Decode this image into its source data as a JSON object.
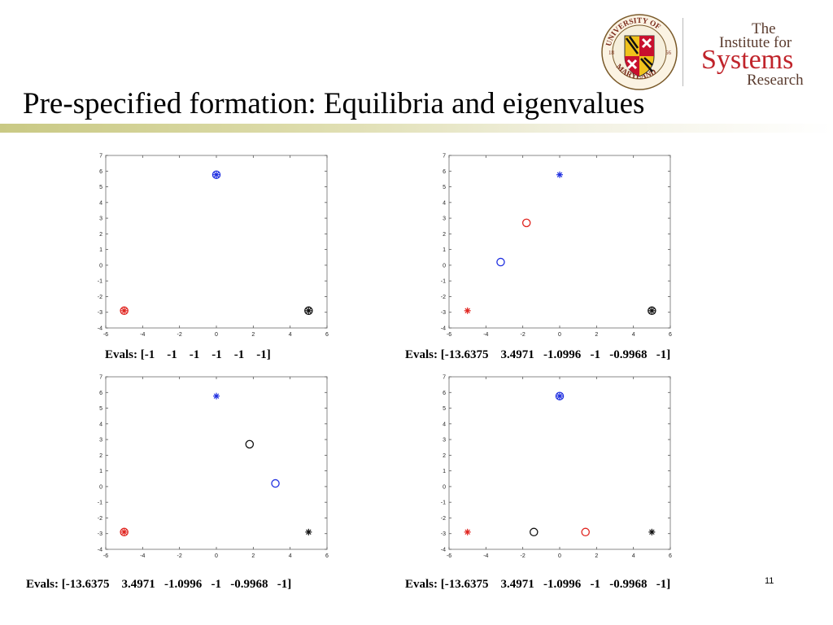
{
  "slide": {
    "title": "Pre-specified formation: Equilibria and eigenvalues",
    "page_number": "11"
  },
  "logos": {
    "seal": {
      "icon": "university-of-maryland-seal-icon",
      "text": "UNIVERSITY OF MARYLAND 18 56"
    },
    "institute": {
      "line1": "The",
      "line2": "Institute for",
      "line3": "Systems",
      "line4": "Research"
    }
  },
  "colors": {
    "red": "#e0241f",
    "blue": "#1f2fe0",
    "black": "#111111",
    "frame": "#888888",
    "title_rule": "#c9c984",
    "isr_red": "#c0242b",
    "isr_brown": "#5a3b2e"
  },
  "chart_data": [
    {
      "type": "scatter",
      "panel": "top-left",
      "xlim": [
        -6,
        6
      ],
      "ylim": [
        -4,
        7
      ],
      "x_ticks": [
        "-6",
        "-4",
        "-2",
        "0",
        "2",
        "4",
        "6"
      ],
      "y_ticks": [
        "-4",
        "-3",
        "-2",
        "-1",
        "0",
        "1",
        "2",
        "3",
        "4",
        "5",
        "6",
        "7"
      ],
      "grid": false,
      "points": [
        {
          "x": -5,
          "y": -2.9,
          "marker": "star",
          "color": "red"
        },
        {
          "x": -5,
          "y": -2.9,
          "marker": "circle",
          "color": "red"
        },
        {
          "x": 0,
          "y": 5.77,
          "marker": "star",
          "color": "blue"
        },
        {
          "x": 0,
          "y": 5.77,
          "marker": "circle",
          "color": "blue"
        },
        {
          "x": 5,
          "y": -2.9,
          "marker": "star",
          "color": "black"
        },
        {
          "x": 5,
          "y": -2.9,
          "marker": "circle",
          "color": "black"
        }
      ],
      "caption": "Evals: [-1    -1    -1    -1    -1    -1]"
    },
    {
      "type": "scatter",
      "panel": "top-right",
      "xlim": [
        -6,
        6
      ],
      "ylim": [
        -4,
        7
      ],
      "x_ticks": [
        "-6",
        "-4",
        "-2",
        "0",
        "2",
        "4",
        "6"
      ],
      "y_ticks": [
        "-4",
        "-3",
        "-2",
        "-1",
        "0",
        "1",
        "2",
        "3",
        "4",
        "5",
        "6",
        "7"
      ],
      "grid": false,
      "points": [
        {
          "x": -5,
          "y": -2.9,
          "marker": "star",
          "color": "red"
        },
        {
          "x": 0,
          "y": 5.77,
          "marker": "star",
          "color": "blue"
        },
        {
          "x": 5,
          "y": -2.9,
          "marker": "star",
          "color": "black"
        },
        {
          "x": 5,
          "y": -2.9,
          "marker": "circle",
          "color": "black"
        },
        {
          "x": -3.2,
          "y": 0.2,
          "marker": "circle",
          "color": "blue"
        },
        {
          "x": -1.8,
          "y": 2.7,
          "marker": "circle",
          "color": "red"
        }
      ],
      "caption": "Evals: [-13.6375    3.4971   -1.0996   -1   -0.9968   -1]"
    },
    {
      "type": "scatter",
      "panel": "bottom-left",
      "xlim": [
        -6,
        6
      ],
      "ylim": [
        -4,
        7
      ],
      "x_ticks": [
        "-6",
        "-4",
        "-2",
        "0",
        "2",
        "4",
        "6"
      ],
      "y_ticks": [
        "-4",
        "-3",
        "-2",
        "-1",
        "0",
        "1",
        "2",
        "3",
        "4",
        "5",
        "6",
        "7"
      ],
      "grid": false,
      "points": [
        {
          "x": -5,
          "y": -2.9,
          "marker": "star",
          "color": "red"
        },
        {
          "x": -5,
          "y": -2.9,
          "marker": "circle",
          "color": "red"
        },
        {
          "x": 0,
          "y": 5.77,
          "marker": "star",
          "color": "blue"
        },
        {
          "x": 5,
          "y": -2.9,
          "marker": "star",
          "color": "black"
        },
        {
          "x": 1.8,
          "y": 2.7,
          "marker": "circle",
          "color": "black"
        },
        {
          "x": 3.2,
          "y": 0.2,
          "marker": "circle",
          "color": "blue"
        }
      ],
      "caption": "Evals: [-13.6375    3.4971   -1.0996   -1   -0.9968   -1]"
    },
    {
      "type": "scatter",
      "panel": "bottom-right",
      "xlim": [
        -6,
        6
      ],
      "ylim": [
        -4,
        7
      ],
      "x_ticks": [
        "-6",
        "-4",
        "-2",
        "0",
        "2",
        "4",
        "6"
      ],
      "y_ticks": [
        "-4",
        "-3",
        "-2",
        "-1",
        "0",
        "1",
        "2",
        "3",
        "4",
        "5",
        "6",
        "7"
      ],
      "grid": false,
      "points": [
        {
          "x": -5,
          "y": -2.9,
          "marker": "star",
          "color": "red"
        },
        {
          "x": 0,
          "y": 5.77,
          "marker": "star",
          "color": "blue"
        },
        {
          "x": 0,
          "y": 5.77,
          "marker": "circle",
          "color": "blue"
        },
        {
          "x": 5,
          "y": -2.9,
          "marker": "star",
          "color": "black"
        },
        {
          "x": -1.4,
          "y": -2.9,
          "marker": "circle",
          "color": "black"
        },
        {
          "x": 1.4,
          "y": -2.9,
          "marker": "circle",
          "color": "red"
        }
      ],
      "caption": "Evals: [-13.6375    3.4971   -1.0996   -1   -0.9968   -1]"
    }
  ]
}
